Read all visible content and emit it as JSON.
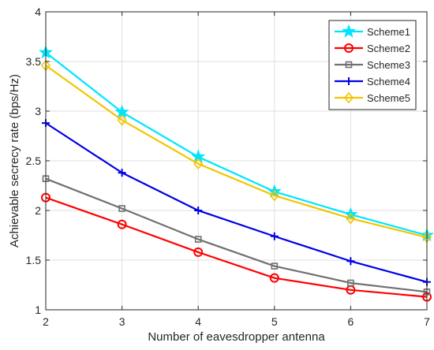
{
  "chart_data": {
    "type": "line",
    "title": "",
    "xlabel": "Number of eavesdropper antenna",
    "ylabel": "Achievable secrecy rate (bps/Hz)",
    "xlim": [
      2,
      7
    ],
    "ylim": [
      1,
      4
    ],
    "x_ticks": [
      2,
      3,
      4,
      5,
      6,
      7
    ],
    "y_ticks": [
      1,
      1.5,
      2,
      2.5,
      3,
      3.5,
      4
    ],
    "y_tick_labels": [
      "1",
      "1.5",
      "2",
      "2.5",
      "3",
      "3.5",
      "4"
    ],
    "x": [
      2,
      3,
      4,
      5,
      6,
      7
    ],
    "grid": true,
    "legend_position": "top-right",
    "series": [
      {
        "name": "Scheme1",
        "color": "#00e5ff",
        "marker": "star",
        "values": [
          3.59,
          2.99,
          2.54,
          2.19,
          1.96,
          1.75
        ]
      },
      {
        "name": "Scheme2",
        "color": "#ff0000",
        "marker": "circle",
        "values": [
          2.13,
          1.86,
          1.58,
          1.32,
          1.2,
          1.13
        ]
      },
      {
        "name": "Scheme3",
        "color": "#707070",
        "marker": "square",
        "values": [
          2.32,
          2.02,
          1.71,
          1.44,
          1.27,
          1.18
        ]
      },
      {
        "name": "Scheme4",
        "color": "#0000e6",
        "marker": "plus",
        "values": [
          2.88,
          2.38,
          2.0,
          1.74,
          1.49,
          1.28
        ]
      },
      {
        "name": "Scheme5",
        "color": "#f2c500",
        "marker": "diamond",
        "values": [
          3.46,
          2.91,
          2.47,
          2.15,
          1.92,
          1.73
        ]
      }
    ]
  }
}
